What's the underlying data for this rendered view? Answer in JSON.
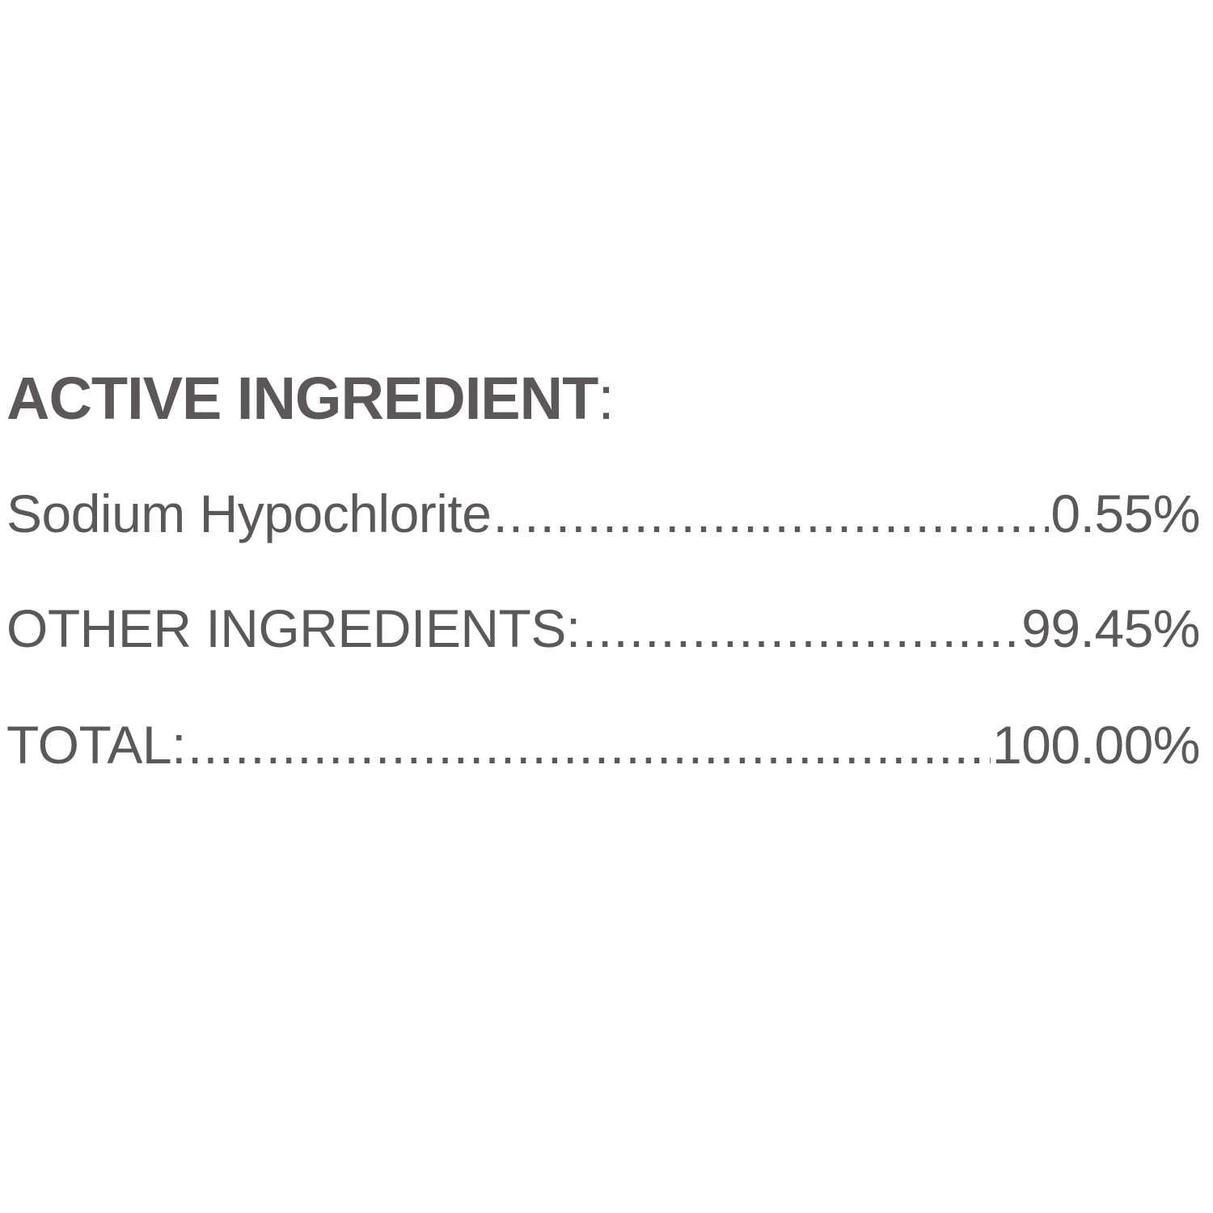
{
  "heading": {
    "label": "ACTIVE INGREDIENT",
    "suffix": ":"
  },
  "rows": [
    {
      "name": "Sodium Hypochlorite",
      "value": "0.55%"
    },
    {
      "name": "OTHER INGREDIENTS:",
      "value": "99.45%"
    },
    {
      "name": "TOTAL:",
      "value": "100.00%"
    }
  ],
  "colors": {
    "text": "#5d5858",
    "background": "#ffffff"
  }
}
